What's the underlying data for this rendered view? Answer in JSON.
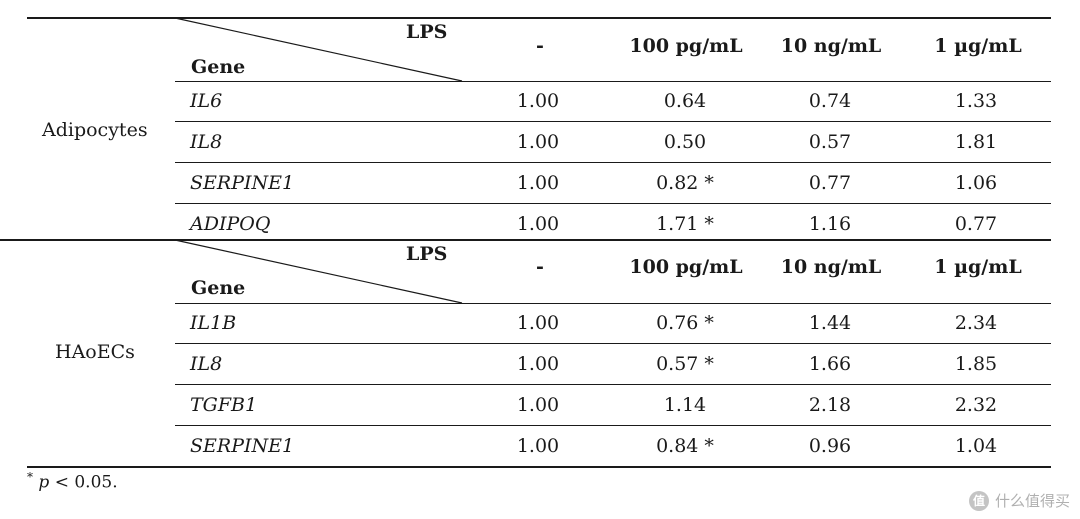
{
  "table": {
    "header": {
      "lps_label": "LPS",
      "gene_label": "Gene",
      "columns": [
        "-",
        "100 pg/mL",
        "10 ng/mL",
        "1 µg/mL"
      ]
    },
    "groups": [
      {
        "cell_type": "Adipocytes",
        "rows": [
          {
            "gene": "IL6",
            "values": [
              "1.00",
              "0.64",
              "0.74",
              "1.33"
            ]
          },
          {
            "gene": "IL8",
            "values": [
              "1.00",
              "0.50",
              "0.57",
              "1.81"
            ]
          },
          {
            "gene": "SERPINE1",
            "values": [
              "1.00",
              "0.82 *",
              "0.77",
              "1.06"
            ]
          },
          {
            "gene": "ADIPOQ",
            "values": [
              "1.00",
              "1.71 *",
              "1.16",
              "0.77"
            ]
          }
        ]
      },
      {
        "cell_type": "HAoECs",
        "rows": [
          {
            "gene": "IL1B",
            "values": [
              "1.00",
              "0.76 *",
              "1.44",
              "2.34"
            ]
          },
          {
            "gene": "IL8",
            "values": [
              "1.00",
              "0.57 *",
              "1.66",
              "1.85"
            ]
          },
          {
            "gene": "TGFB1",
            "values": [
              "1.00",
              "1.14",
              "2.18",
              "2.32"
            ]
          },
          {
            "gene": "SERPINE1",
            "values": [
              "1.00",
              "0.84 *",
              "0.96",
              "1.04"
            ]
          }
        ]
      }
    ]
  },
  "footnote": {
    "star": "*",
    "p": "p",
    "text": " < 0.05."
  },
  "watermark": {
    "logo": "值",
    "text": "什么值得买"
  }
}
